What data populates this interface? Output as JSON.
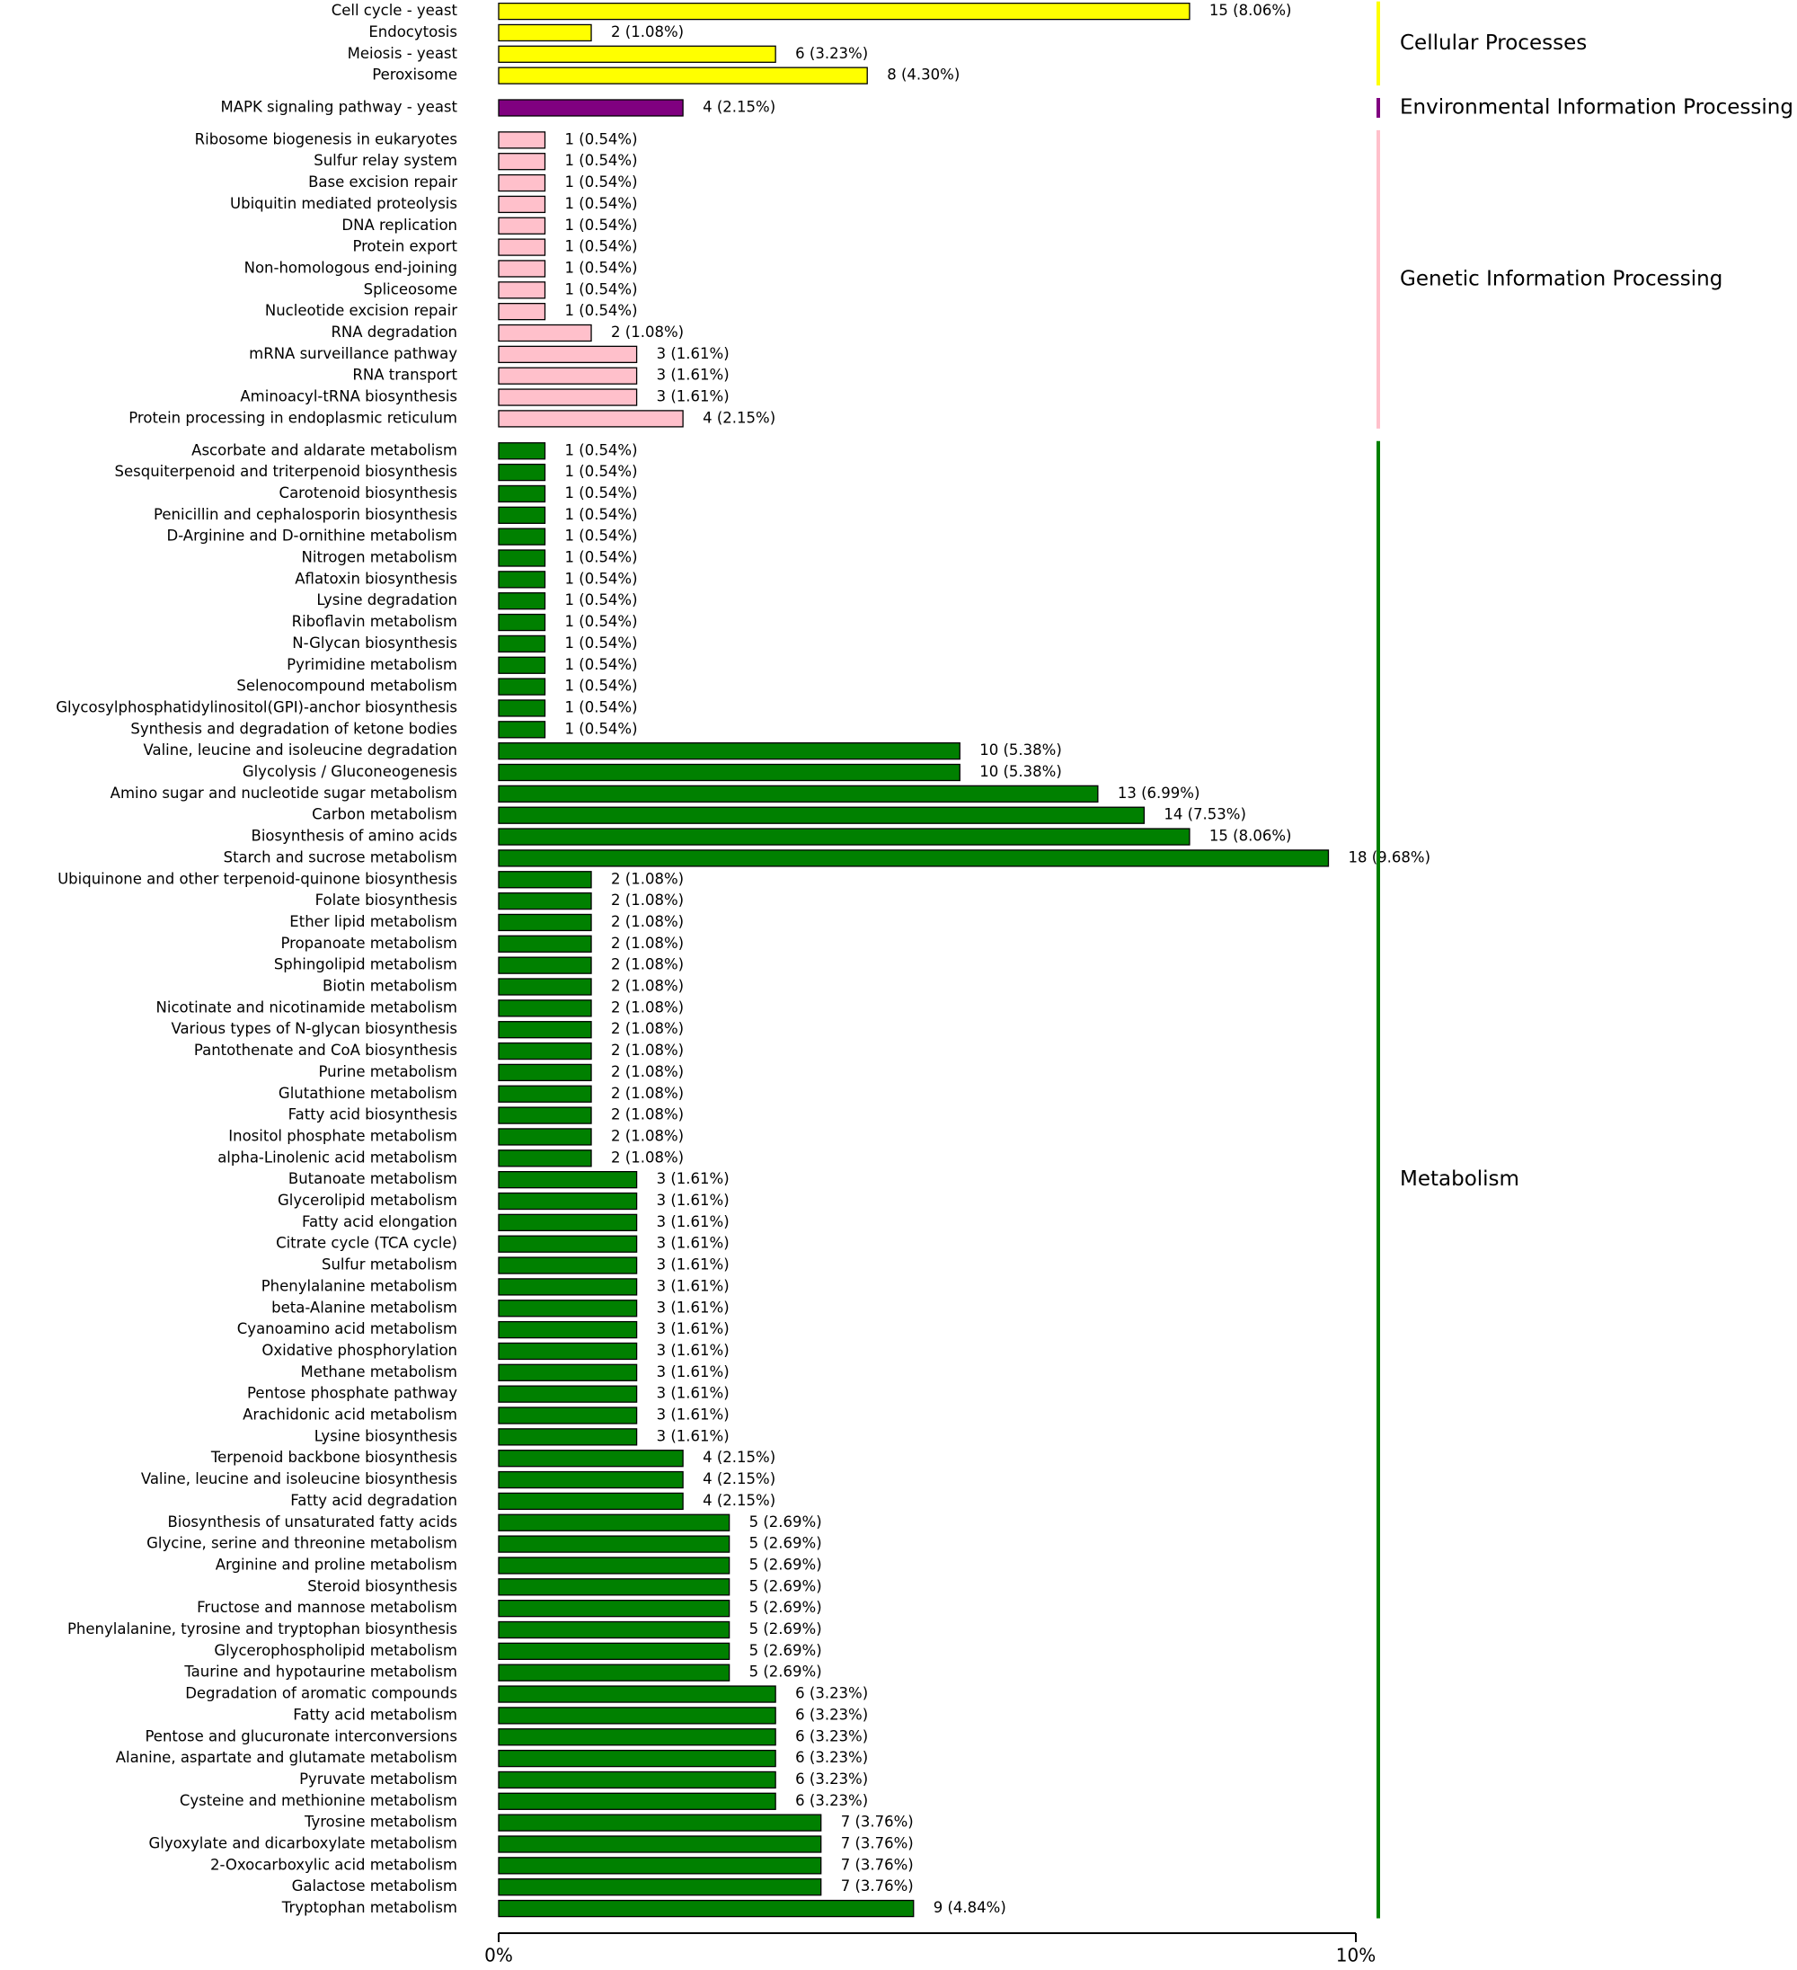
{
  "chart_data": {
    "type": "bar",
    "orientation": "horizontal",
    "xlim": [
      0,
      10
    ],
    "xticks": [
      {
        "value": 0,
        "label": "0%"
      },
      {
        "value": 10,
        "label": "10%"
      }
    ],
    "series": [
      {
        "name": "Cellular Processes",
        "color": "#ffff00",
        "categories": [
          "Cell cycle - yeast",
          "Endocytosis",
          "Meiosis - yeast",
          "Peroxisome"
        ],
        "values": [
          8.06,
          1.08,
          3.23,
          4.3
        ],
        "value_labels": [
          "15 (8.06%)",
          "2 (1.08%)",
          "6 (3.23%)",
          "8 (4.30%)"
        ]
      },
      {
        "name": "Environmental Information Processing",
        "color": "#800080",
        "categories": [
          "MAPK signaling pathway - yeast"
        ],
        "values": [
          2.15
        ],
        "value_labels": [
          "4 (2.15%)"
        ]
      },
      {
        "name": "Genetic Information Processing",
        "color": "#ffc0cb",
        "categories": [
          "Ribosome biogenesis in eukaryotes",
          "Sulfur relay system",
          "Base excision repair",
          "Ubiquitin mediated proteolysis",
          "DNA replication",
          "Protein export",
          "Non-homologous end-joining",
          "Spliceosome",
          "Nucleotide excision repair",
          "RNA degradation",
          "mRNA surveillance pathway",
          "RNA transport",
          "Aminoacyl-tRNA biosynthesis",
          "Protein processing in endoplasmic reticulum"
        ],
        "values": [
          0.54,
          0.54,
          0.54,
          0.54,
          0.54,
          0.54,
          0.54,
          0.54,
          0.54,
          1.08,
          1.61,
          1.61,
          1.61,
          2.15
        ],
        "value_labels": [
          "1 (0.54%)",
          "1 (0.54%)",
          "1 (0.54%)",
          "1 (0.54%)",
          "1 (0.54%)",
          "1 (0.54%)",
          "1 (0.54%)",
          "1 (0.54%)",
          "1 (0.54%)",
          "2 (1.08%)",
          "3 (1.61%)",
          "3 (1.61%)",
          "3 (1.61%)",
          "4 (2.15%)"
        ]
      },
      {
        "name": "Metabolism",
        "color": "#008000",
        "categories": [
          "Ascorbate and aldarate metabolism",
          "Sesquiterpenoid and triterpenoid biosynthesis",
          "Carotenoid biosynthesis",
          "Penicillin and cephalosporin biosynthesis",
          "D-Arginine and D-ornithine metabolism",
          "Nitrogen metabolism",
          "Aflatoxin biosynthesis",
          "Lysine degradation",
          "Riboflavin metabolism",
          "N-Glycan biosynthesis",
          "Pyrimidine metabolism",
          "Selenocompound metabolism",
          "Glycosylphosphatidylinositol(GPI)-anchor biosynthesis",
          "Synthesis and degradation of ketone bodies",
          "Valine, leucine and isoleucine degradation",
          "Glycolysis / Gluconeogenesis",
          "Amino sugar and nucleotide sugar metabolism",
          "Carbon metabolism",
          "Biosynthesis of amino acids",
          "Starch and sucrose metabolism",
          "Ubiquinone and other terpenoid-quinone biosynthesis",
          "Folate biosynthesis",
          "Ether lipid metabolism",
          "Propanoate metabolism",
          "Sphingolipid metabolism",
          "Biotin metabolism",
          "Nicotinate and nicotinamide metabolism",
          "Various types of N-glycan biosynthesis",
          "Pantothenate and CoA biosynthesis",
          "Purine metabolism",
          "Glutathione metabolism",
          "Fatty acid biosynthesis",
          "Inositol phosphate metabolism",
          "alpha-Linolenic acid metabolism",
          "Butanoate metabolism",
          "Glycerolipid metabolism",
          "Fatty acid elongation",
          "Citrate cycle (TCA cycle)",
          "Sulfur metabolism",
          "Phenylalanine metabolism",
          "beta-Alanine metabolism",
          "Cyanoamino acid metabolism",
          "Oxidative phosphorylation",
          "Methane metabolism",
          "Pentose phosphate pathway",
          "Arachidonic acid metabolism",
          "Lysine biosynthesis",
          "Terpenoid backbone biosynthesis",
          "Valine, leucine and isoleucine biosynthesis",
          "Fatty acid degradation",
          "Biosynthesis of unsaturated fatty acids",
          "Glycine, serine and threonine metabolism",
          "Arginine and proline metabolism",
          "Steroid biosynthesis",
          "Fructose and mannose metabolism",
          "Phenylalanine, tyrosine and tryptophan biosynthesis",
          "Glycerophospholipid metabolism",
          "Taurine and hypotaurine metabolism",
          "Degradation of aromatic compounds",
          "Fatty acid metabolism",
          "Pentose and glucuronate interconversions",
          "Alanine, aspartate and glutamate metabolism",
          "Pyruvate metabolism",
          "Cysteine and methionine metabolism",
          "Tyrosine metabolism",
          "Glyoxylate and dicarboxylate metabolism",
          "2-Oxocarboxylic acid metabolism",
          "Galactose metabolism",
          "Tryptophan metabolism"
        ],
        "values": [
          0.54,
          0.54,
          0.54,
          0.54,
          0.54,
          0.54,
          0.54,
          0.54,
          0.54,
          0.54,
          0.54,
          0.54,
          0.54,
          0.54,
          5.38,
          5.38,
          6.99,
          7.53,
          8.06,
          9.68,
          1.08,
          1.08,
          1.08,
          1.08,
          1.08,
          1.08,
          1.08,
          1.08,
          1.08,
          1.08,
          1.08,
          1.08,
          1.08,
          1.08,
          1.61,
          1.61,
          1.61,
          1.61,
          1.61,
          1.61,
          1.61,
          1.61,
          1.61,
          1.61,
          1.61,
          1.61,
          1.61,
          2.15,
          2.15,
          2.15,
          2.69,
          2.69,
          2.69,
          2.69,
          2.69,
          2.69,
          2.69,
          2.69,
          3.23,
          3.23,
          3.23,
          3.23,
          3.23,
          3.23,
          3.76,
          3.76,
          3.76,
          3.76,
          4.84
        ],
        "value_labels": [
          "1 (0.54%)",
          "1 (0.54%)",
          "1 (0.54%)",
          "1 (0.54%)",
          "1 (0.54%)",
          "1 (0.54%)",
          "1 (0.54%)",
          "1 (0.54%)",
          "1 (0.54%)",
          "1 (0.54%)",
          "1 (0.54%)",
          "1 (0.54%)",
          "1 (0.54%)",
          "1 (0.54%)",
          "10 (5.38%)",
          "10 (5.38%)",
          "13 (6.99%)",
          "14 (7.53%)",
          "15 (8.06%)",
          "18 (9.68%)",
          "2 (1.08%)",
          "2 (1.08%)",
          "2 (1.08%)",
          "2 (1.08%)",
          "2 (1.08%)",
          "2 (1.08%)",
          "2 (1.08%)",
          "2 (1.08%)",
          "2 (1.08%)",
          "2 (1.08%)",
          "2 (1.08%)",
          "2 (1.08%)",
          "2 (1.08%)",
          "2 (1.08%)",
          "3 (1.61%)",
          "3 (1.61%)",
          "3 (1.61%)",
          "3 (1.61%)",
          "3 (1.61%)",
          "3 (1.61%)",
          "3 (1.61%)",
          "3 (1.61%)",
          "3 (1.61%)",
          "3 (1.61%)",
          "3 (1.61%)",
          "3 (1.61%)",
          "3 (1.61%)",
          "4 (2.15%)",
          "4 (2.15%)",
          "4 (2.15%)",
          "5 (2.69%)",
          "5 (2.69%)",
          "5 (2.69%)",
          "5 (2.69%)",
          "5 (2.69%)",
          "5 (2.69%)",
          "5 (2.69%)",
          "5 (2.69%)",
          "6 (3.23%)",
          "6 (3.23%)",
          "6 (3.23%)",
          "6 (3.23%)",
          "6 (3.23%)",
          "6 (3.23%)",
          "7 (3.76%)",
          "7 (3.76%)",
          "7 (3.76%)",
          "7 (3.76%)",
          "9 (4.84%)"
        ]
      }
    ]
  }
}
